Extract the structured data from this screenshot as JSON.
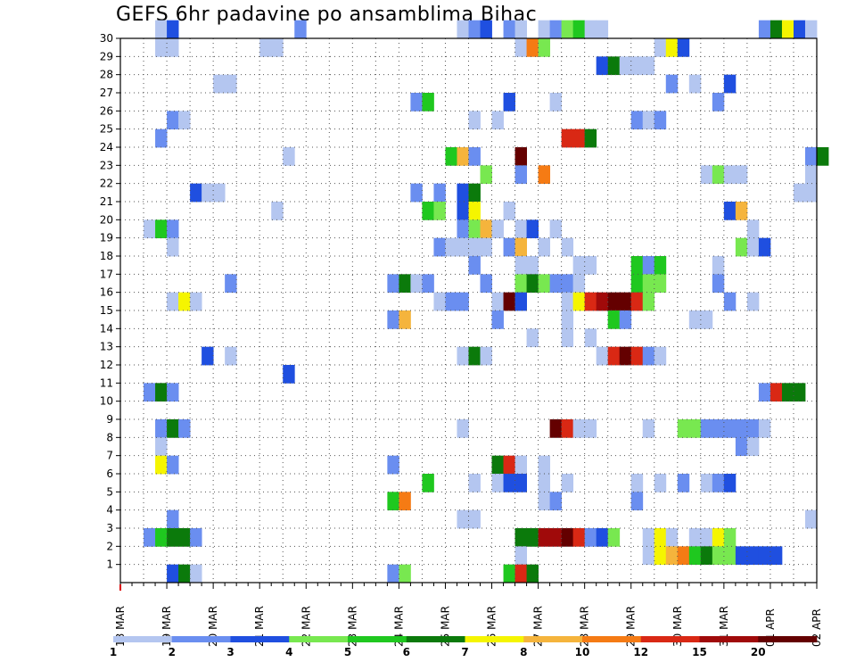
{
  "title": "GEFS 6hr padavine po ansamblima Bihac",
  "chart_data": {
    "type": "heatmap",
    "title": "GEFS 6hr padavine po ansamblima Bihac",
    "xlabel": "",
    "ylabel": "",
    "x_tick_labels": [
      "18 MAR",
      "19 MAR",
      "20 MAR",
      "21 MAR",
      "22 MAR",
      "23 MAR",
      "24 MAR",
      "25 MAR",
      "26 MAR",
      "27 MAR",
      "28 MAR",
      "29 MAR",
      "30 MAR",
      "31 MAR",
      "01 APR",
      "02 APR"
    ],
    "y_ticks": [
      1,
      2,
      3,
      4,
      5,
      6,
      7,
      8,
      9,
      10,
      11,
      12,
      13,
      14,
      15,
      16,
      17,
      18,
      19,
      20,
      21,
      22,
      23,
      24,
      25,
      26,
      27,
      28,
      29,
      30
    ],
    "ylim": [
      0,
      30
    ],
    "time_steps": 60,
    "step_hours": 6,
    "grid": true,
    "legend_position": "bottom",
    "colorbar": {
      "labels": [
        "1",
        "2",
        "3",
        "4",
        "5",
        "6",
        "7",
        "8",
        "10",
        "12",
        "15",
        "20"
      ],
      "colors": [
        "#b4c6f0",
        "#6a8ef0",
        "#1f4fe0",
        "#78e850",
        "#1fc81f",
        "#0b7a0b",
        "#f5f500",
        "#f5b43c",
        "#f57b14",
        "#d92814",
        "#a00a0a",
        "#640000"
      ]
    },
    "cells": [
      [
        3,
        30,
        1
      ],
      [
        4,
        30,
        3
      ],
      [
        15,
        30,
        2
      ],
      [
        29,
        30,
        1
      ],
      [
        30,
        30,
        2
      ],
      [
        31,
        30,
        3
      ],
      [
        33,
        30,
        2
      ],
      [
        34,
        30,
        1
      ],
      [
        36,
        30,
        1
      ],
      [
        37,
        30,
        2
      ],
      [
        38,
        30,
        4
      ],
      [
        39,
        30,
        5
      ],
      [
        40,
        30,
        1
      ],
      [
        41,
        30,
        1
      ],
      [
        55,
        30,
        2
      ],
      [
        56,
        30,
        6
      ],
      [
        57,
        30,
        7
      ],
      [
        58,
        30,
        3
      ],
      [
        59,
        30,
        1
      ],
      [
        3,
        29,
        1
      ],
      [
        4,
        29,
        1
      ],
      [
        12,
        29,
        1
      ],
      [
        13,
        29,
        1
      ],
      [
        34,
        29,
        1
      ],
      [
        35,
        29,
        9
      ],
      [
        36,
        29,
        4
      ],
      [
        46,
        29,
        1
      ],
      [
        47,
        29,
        7
      ],
      [
        48,
        29,
        3
      ],
      [
        41,
        28,
        3
      ],
      [
        42,
        28,
        6
      ],
      [
        43,
        28,
        1
      ],
      [
        44,
        28,
        1
      ],
      [
        45,
        28,
        1
      ],
      [
        8,
        27,
        1
      ],
      [
        9,
        27,
        1
      ],
      [
        47,
        27,
        2
      ],
      [
        49,
        27,
        1
      ],
      [
        52,
        27,
        3
      ],
      [
        25,
        26,
        2
      ],
      [
        26,
        26,
        5
      ],
      [
        33,
        26,
        3
      ],
      [
        37,
        26,
        1
      ],
      [
        51,
        26,
        2
      ],
      [
        4,
        25,
        2
      ],
      [
        5,
        25,
        1
      ],
      [
        30,
        25,
        1
      ],
      [
        32,
        25,
        1
      ],
      [
        44,
        25,
        2
      ],
      [
        45,
        25,
        1
      ],
      [
        46,
        25,
        2
      ],
      [
        3,
        24,
        2
      ],
      [
        38,
        24,
        10
      ],
      [
        39,
        24,
        10
      ],
      [
        40,
        24,
        6
      ],
      [
        14,
        23,
        1
      ],
      [
        28,
        23,
        5
      ],
      [
        29,
        23,
        8
      ],
      [
        30,
        23,
        2
      ],
      [
        34,
        23,
        12
      ],
      [
        59,
        23,
        2
      ],
      [
        60,
        23,
        6
      ],
      [
        31,
        22,
        4
      ],
      [
        34,
        22,
        2
      ],
      [
        36,
        22,
        9
      ],
      [
        50,
        22,
        1
      ],
      [
        51,
        22,
        4
      ],
      [
        52,
        22,
        1
      ],
      [
        53,
        22,
        1
      ],
      [
        59,
        22,
        1
      ],
      [
        6,
        21,
        3
      ],
      [
        7,
        21,
        1
      ],
      [
        8,
        21,
        1
      ],
      [
        25,
        21,
        2
      ],
      [
        27,
        21,
        2
      ],
      [
        29,
        21,
        3
      ],
      [
        30,
        21,
        6
      ],
      [
        58,
        21,
        1
      ],
      [
        59,
        21,
        1
      ],
      [
        13,
        20,
        1
      ],
      [
        26,
        20,
        5
      ],
      [
        27,
        20,
        4
      ],
      [
        29,
        20,
        3
      ],
      [
        30,
        20,
        7
      ],
      [
        33,
        20,
        1
      ],
      [
        52,
        20,
        3
      ],
      [
        53,
        20,
        8
      ],
      [
        2,
        19,
        1
      ],
      [
        3,
        19,
        5
      ],
      [
        4,
        19,
        2
      ],
      [
        29,
        19,
        2
      ],
      [
        30,
        19,
        4
      ],
      [
        31,
        19,
        8
      ],
      [
        32,
        19,
        1
      ],
      [
        34,
        19,
        1
      ],
      [
        35,
        19,
        3
      ],
      [
        37,
        19,
        1
      ],
      [
        54,
        19,
        1
      ],
      [
        4,
        18,
        1
      ],
      [
        27,
        18,
        2
      ],
      [
        28,
        18,
        1
      ],
      [
        29,
        18,
        1
      ],
      [
        30,
        18,
        1
      ],
      [
        31,
        18,
        1
      ],
      [
        33,
        18,
        2
      ],
      [
        34,
        18,
        8
      ],
      [
        36,
        18,
        1
      ],
      [
        38,
        18,
        1
      ],
      [
        53,
        18,
        4
      ],
      [
        54,
        18,
        1
      ],
      [
        55,
        18,
        3
      ],
      [
        30,
        17,
        2
      ],
      [
        34,
        17,
        1
      ],
      [
        35,
        17,
        1
      ],
      [
        39,
        17,
        1
      ],
      [
        40,
        17,
        1
      ],
      [
        44,
        17,
        5
      ],
      [
        45,
        17,
        2
      ],
      [
        46,
        17,
        5
      ],
      [
        51,
        17,
        1
      ],
      [
        9,
        16,
        2
      ],
      [
        23,
        16,
        2
      ],
      [
        24,
        16,
        6
      ],
      [
        25,
        16,
        1
      ],
      [
        26,
        16,
        2
      ],
      [
        31,
        16,
        2
      ],
      [
        34,
        16,
        4
      ],
      [
        35,
        16,
        6
      ],
      [
        36,
        16,
        4
      ],
      [
        37,
        16,
        2
      ],
      [
        38,
        16,
        2
      ],
      [
        39,
        16,
        1
      ],
      [
        44,
        16,
        5
      ],
      [
        45,
        16,
        4
      ],
      [
        46,
        16,
        4
      ],
      [
        51,
        16,
        2
      ],
      [
        4,
        15,
        1
      ],
      [
        5,
        15,
        7
      ],
      [
        6,
        15,
        1
      ],
      [
        27,
        15,
        1
      ],
      [
        28,
        15,
        2
      ],
      [
        29,
        15,
        2
      ],
      [
        32,
        15,
        1
      ],
      [
        33,
        15,
        12
      ],
      [
        34,
        15,
        3
      ],
      [
        38,
        15,
        1
      ],
      [
        39,
        15,
        7
      ],
      [
        40,
        15,
        10
      ],
      [
        41,
        15,
        11
      ],
      [
        42,
        15,
        12
      ],
      [
        43,
        15,
        12
      ],
      [
        44,
        15,
        10
      ],
      [
        45,
        15,
        4
      ],
      [
        52,
        15,
        2
      ],
      [
        54,
        15,
        1
      ],
      [
        23,
        14,
        2
      ],
      [
        24,
        14,
        8
      ],
      [
        32,
        14,
        2
      ],
      [
        38,
        14,
        1
      ],
      [
        42,
        14,
        5
      ],
      [
        43,
        14,
        2
      ],
      [
        49,
        14,
        1
      ],
      [
        50,
        14,
        1
      ],
      [
        35,
        13,
        1
      ],
      [
        38,
        13,
        1
      ],
      [
        40,
        13,
        1
      ],
      [
        7,
        12,
        3
      ],
      [
        9,
        12,
        1
      ],
      [
        29,
        12,
        1
      ],
      [
        30,
        12,
        6
      ],
      [
        31,
        12,
        1
      ],
      [
        41,
        12,
        1
      ],
      [
        42,
        12,
        10
      ],
      [
        43,
        12,
        12
      ],
      [
        44,
        12,
        10
      ],
      [
        45,
        12,
        2
      ],
      [
        46,
        12,
        1
      ],
      [
        14,
        11,
        3
      ],
      [
        2,
        10,
        2
      ],
      [
        3,
        10,
        6
      ],
      [
        4,
        10,
        2
      ],
      [
        55,
        10,
        2
      ],
      [
        56,
        10,
        10
      ],
      [
        57,
        10,
        6
      ],
      [
        58,
        10,
        6
      ],
      [
        3,
        8,
        2
      ],
      [
        4,
        8,
        6
      ],
      [
        5,
        8,
        2
      ],
      [
        29,
        8,
        1
      ],
      [
        37,
        8,
        12
      ],
      [
        38,
        8,
        10
      ],
      [
        39,
        8,
        1
      ],
      [
        40,
        8,
        1
      ],
      [
        45,
        8,
        1
      ],
      [
        48,
        8,
        4
      ],
      [
        49,
        8,
        4
      ],
      [
        50,
        8,
        2
      ],
      [
        51,
        8,
        2
      ],
      [
        52,
        8,
        2
      ],
      [
        53,
        8,
        2
      ],
      [
        54,
        8,
        2
      ],
      [
        55,
        8,
        1
      ],
      [
        3,
        7,
        1
      ],
      [
        53,
        7,
        2
      ],
      [
        54,
        7,
        1
      ],
      [
        3,
        6,
        7
      ],
      [
        4,
        6,
        2
      ],
      [
        23,
        6,
        2
      ],
      [
        32,
        6,
        6
      ],
      [
        33,
        6,
        10
      ],
      [
        34,
        6,
        1
      ],
      [
        36,
        6,
        1
      ],
      [
        26,
        5,
        5
      ],
      [
        30,
        5,
        1
      ],
      [
        32,
        5,
        1
      ],
      [
        33,
        5,
        3
      ],
      [
        34,
        5,
        3
      ],
      [
        36,
        5,
        1
      ],
      [
        38,
        5,
        1
      ],
      [
        44,
        5,
        1
      ],
      [
        46,
        5,
        1
      ],
      [
        48,
        5,
        2
      ],
      [
        50,
        5,
        1
      ],
      [
        51,
        5,
        2
      ],
      [
        52,
        5,
        3
      ],
      [
        23,
        4,
        5
      ],
      [
        24,
        4,
        9
      ],
      [
        36,
        4,
        1
      ],
      [
        37,
        4,
        2
      ],
      [
        44,
        4,
        2
      ],
      [
        4,
        3,
        2
      ],
      [
        29,
        3,
        1
      ],
      [
        30,
        3,
        1
      ],
      [
        59,
        3,
        1
      ],
      [
        2,
        2,
        2
      ],
      [
        3,
        2,
        5
      ],
      [
        4,
        2,
        6
      ],
      [
        5,
        2,
        6
      ],
      [
        6,
        2,
        2
      ],
      [
        34,
        2,
        6
      ],
      [
        35,
        2,
        6
      ],
      [
        36,
        2,
        11
      ],
      [
        37,
        2,
        11
      ],
      [
        38,
        2,
        12
      ],
      [
        39,
        2,
        10
      ],
      [
        40,
        2,
        2
      ],
      [
        41,
        2,
        3
      ],
      [
        42,
        2,
        4
      ],
      [
        45,
        2,
        1
      ],
      [
        46,
        2,
        7
      ],
      [
        47,
        2,
        1
      ],
      [
        49,
        2,
        1
      ],
      [
        50,
        2,
        1
      ],
      [
        51,
        2,
        7
      ],
      [
        52,
        2,
        4
      ],
      [
        34,
        1,
        1
      ],
      [
        45,
        1,
        1
      ],
      [
        46,
        1,
        7
      ],
      [
        47,
        1,
        8
      ],
      [
        48,
        1,
        9
      ],
      [
        49,
        1,
        5
      ],
      [
        50,
        1,
        6
      ],
      [
        51,
        1,
        4
      ],
      [
        52,
        1,
        4
      ],
      [
        53,
        1,
        3
      ],
      [
        54,
        1,
        3
      ],
      [
        55,
        1,
        3
      ],
      [
        56,
        1,
        3
      ],
      [
        4,
        0,
        3
      ],
      [
        5,
        0,
        6
      ],
      [
        6,
        0,
        1
      ],
      [
        23,
        0,
        2
      ],
      [
        24,
        0,
        4
      ],
      [
        33,
        0,
        5
      ],
      [
        34,
        0,
        10
      ],
      [
        35,
        0,
        6
      ]
    ]
  }
}
